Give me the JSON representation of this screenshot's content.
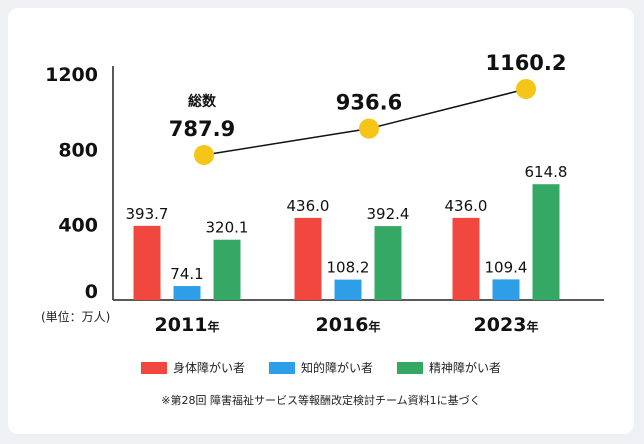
{
  "chart_data": {
    "type": "bar",
    "categories": [
      "2011",
      "2016",
      "2023"
    ],
    "year_suffix": "年",
    "series": [
      {
        "name": "身体障がい者",
        "color": "#f2473f",
        "values": [
          393.7,
          436.0,
          436.0
        ]
      },
      {
        "name": "知的障がい者",
        "color": "#2f9ee8",
        "values": [
          74.1,
          108.2,
          109.4
        ]
      },
      {
        "name": "精神障がい者",
        "color": "#36a865",
        "values": [
          320.1,
          392.4,
          614.8
        ]
      }
    ],
    "total_line": {
      "label": "総数",
      "color": "#f5c518",
      "values": [
        787.9,
        936.6,
        1160.2
      ]
    },
    "y_ticks": [
      0,
      400,
      800,
      1200
    ],
    "ylim": [
      0,
      1200
    ],
    "unit_label": "(単位：万人)",
    "value_labels": {
      "bars": [
        [
          "393.7",
          "74.1",
          "320.1"
        ],
        [
          "436.0",
          "108.2",
          "392.4"
        ],
        [
          "436.0",
          "109.4",
          "614.8"
        ]
      ],
      "totals": [
        "787.9",
        "936.6",
        "1160.2"
      ]
    },
    "legend_position": "bottom",
    "grid": false
  },
  "footnote": "※第28回 障害福祉サービス等報酬改定検討チーム資料1に基づく"
}
